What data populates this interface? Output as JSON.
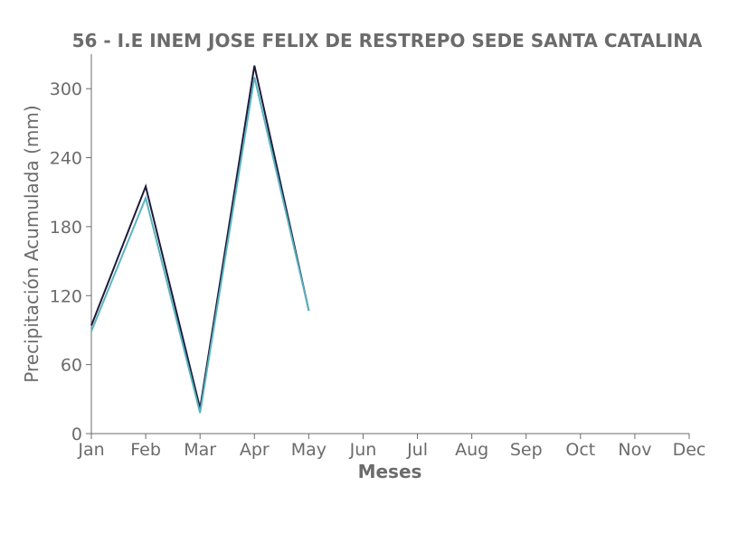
{
  "chart_data": {
    "type": "line",
    "title": "56 - I.E INEM JOSE FELIX DE RESTREPO SEDE SANTA CATALINA",
    "xlabel": "Meses",
    "ylabel": "Precipitación Acumulada (mm)",
    "categories": [
      "Jan",
      "Feb",
      "Mar",
      "Apr",
      "May",
      "Jun",
      "Jul",
      "Aug",
      "Sep",
      "Oct",
      "Nov",
      "Dec"
    ],
    "ylim": [
      0,
      330
    ],
    "yticks": [
      0,
      60,
      120,
      180,
      240,
      300
    ],
    "grid": false,
    "series": [
      {
        "color": "#1c1a3a",
        "values": [
          94,
          215,
          22,
          320,
          107,
          null,
          null,
          null,
          null,
          null,
          null,
          null
        ]
      },
      {
        "color": "#5ab4bf",
        "values": [
          89,
          205,
          18,
          310,
          107,
          null,
          null,
          null,
          null,
          null,
          null,
          null
        ]
      }
    ]
  }
}
